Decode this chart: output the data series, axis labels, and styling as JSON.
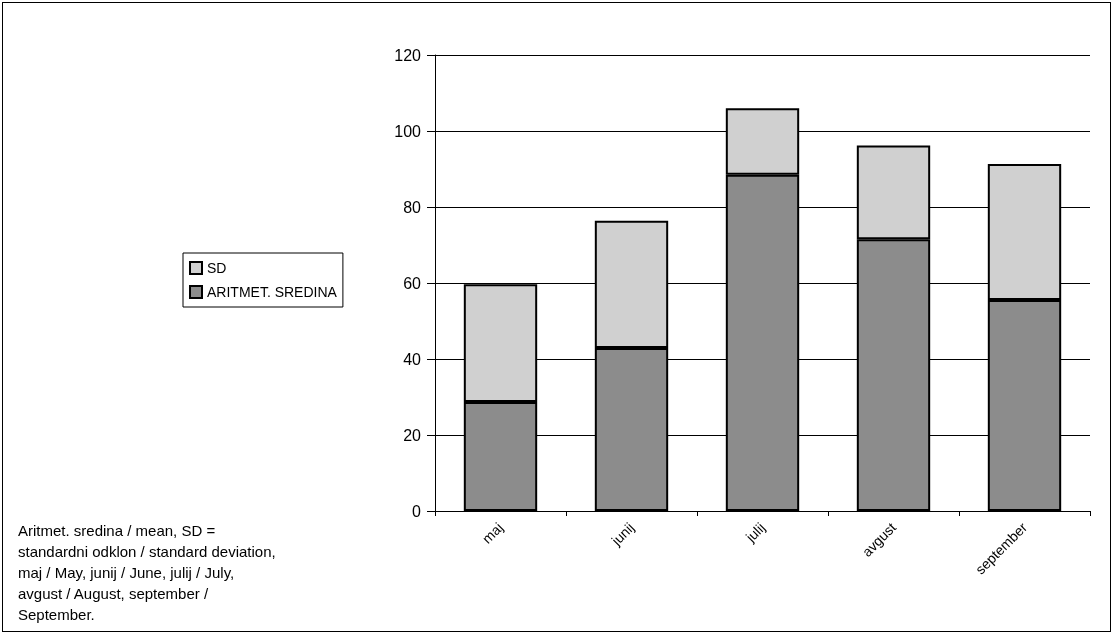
{
  "chart_data": {
    "type": "bar",
    "stacked": true,
    "categories": [
      "maj",
      "junij",
      "julij",
      "avgust",
      "september"
    ],
    "series": [
      {
        "name": "ARITMET. SREDINA",
        "color": "#8c8c8c",
        "values": [
          28.7,
          42.9,
          88.5,
          71.5,
          55.5
        ]
      },
      {
        "name": "SD",
        "color": "#d0d0d0",
        "values": [
          31.0,
          33.5,
          17.5,
          24.7,
          35.8
        ]
      }
    ],
    "ylim": [
      0,
      120
    ],
    "yticks": [
      0,
      20,
      40,
      60,
      80,
      100,
      120
    ],
    "grid": "y",
    "legend": "left",
    "annotations": [
      "Aritmet. sredina / mean, SD = standardni odklon / standard deviation,maj / May, junij / June, julij / July, avgust / August, september / September."
    ]
  }
}
